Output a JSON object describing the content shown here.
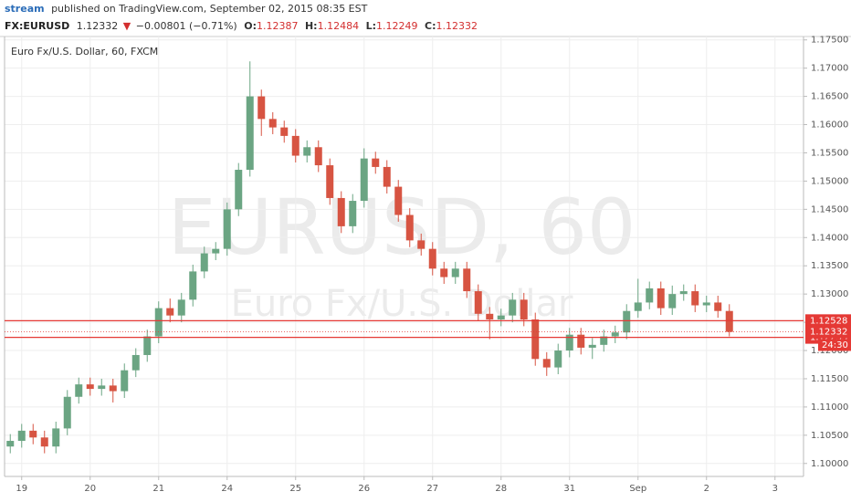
{
  "header": {
    "author": "stream",
    "published": "published on TradingView.com, September 02, 2015 08:35 EST"
  },
  "legend": {
    "symbol": "FX:EURUSD",
    "last": "1.12332",
    "arrow": "▼",
    "change": "−0.00801 (−0.71%)",
    "o_label": "O:",
    "o": "1.12387",
    "h_label": "H:",
    "h": "1.12484",
    "l_label": "L:",
    "l": "1.12249",
    "c_label": "C:",
    "c": "1.12332"
  },
  "chart_data": {
    "type": "candlestick",
    "title": "Euro Fx/U.S. Dollar, 60, FXCM",
    "watermark": "EURUSD, 60",
    "watermark_sub": "Euro Fx/U.S. Dollar",
    "up_color": "#6ba583",
    "down_color": "#d75442",
    "line_color": "#e53935",
    "categories": [
      null,
      "19",
      null,
      null,
      null,
      null,
      null,
      "20",
      null,
      null,
      null,
      null,
      null,
      "21",
      null,
      null,
      null,
      null,
      null,
      "24",
      null,
      null,
      null,
      null,
      null,
      "25",
      null,
      null,
      null,
      null,
      null,
      "26",
      null,
      null,
      null,
      null,
      null,
      "27",
      null,
      null,
      null,
      null,
      null,
      "28",
      null,
      null,
      null,
      null,
      null,
      "31",
      null,
      null,
      null,
      null,
      null,
      "Sep",
      null,
      null,
      null,
      null,
      null,
      "2",
      null,
      null,
      null,
      null,
      null,
      "3"
    ],
    "open": [
      1.103,
      1.104,
      1.1058,
      1.1046,
      1.103,
      1.1062,
      1.1118,
      1.114,
      1.1132,
      1.1138,
      1.1128,
      1.1165,
      1.1192,
      1.1225,
      1.1275,
      1.1262,
      1.129,
      1.134,
      1.1372,
      1.138,
      1.145,
      1.152,
      1.165,
      1.161,
      1.1595,
      1.158,
      1.1545,
      1.156,
      1.1528,
      1.147,
      1.142,
      1.1465,
      1.154,
      1.1525,
      1.149,
      1.144,
      1.1395,
      1.138,
      1.1345,
      1.133,
      1.1345,
      1.1305,
      1.1265,
      1.1255,
      1.1262,
      1.129,
      1.1255,
      1.1185,
      1.117,
      1.12,
      1.1228,
      1.1205,
      1.121,
      1.1225,
      1.1232,
      1.127,
      1.1285,
      1.131,
      1.1275,
      1.13,
      1.1305,
      1.128,
      1.1285,
      1.127,
      null,
      null,
      null,
      null
    ],
    "high": [
      1.1052,
      1.107,
      1.107,
      1.1058,
      1.1074,
      1.113,
      1.1152,
      1.1152,
      1.115,
      1.115,
      1.1177,
      1.1204,
      1.1237,
      1.1287,
      1.1292,
      1.1302,
      1.1352,
      1.1384,
      1.1392,
      1.1462,
      1.1532,
      1.1712,
      1.1662,
      1.1622,
      1.1607,
      1.1592,
      1.1572,
      1.1572,
      1.154,
      1.1482,
      1.1477,
      1.1558,
      1.1552,
      1.1537,
      1.1502,
      1.1452,
      1.1407,
      1.1392,
      1.1357,
      1.1357,
      1.1357,
      1.1317,
      1.1277,
      1.1274,
      1.1302,
      1.1302,
      1.1267,
      1.1197,
      1.1212,
      1.124,
      1.124,
      1.1222,
      1.1237,
      1.1244,
      1.1282,
      1.1327,
      1.1322,
      1.1322,
      1.1315,
      1.1317,
      1.1317,
      1.1297,
      1.1297,
      1.1282,
      null,
      null,
      null,
      null
    ],
    "low": [
      1.1018,
      1.1028,
      1.1034,
      1.1018,
      1.1018,
      1.105,
      1.1106,
      1.112,
      1.112,
      1.1108,
      1.1116,
      1.1153,
      1.118,
      1.1213,
      1.125,
      1.125,
      1.1278,
      1.1328,
      1.136,
      1.1368,
      1.1438,
      1.1508,
      1.158,
      1.1583,
      1.1568,
      1.1533,
      1.1533,
      1.1516,
      1.1458,
      1.1408,
      1.1408,
      1.1453,
      1.1513,
      1.1478,
      1.1428,
      1.1383,
      1.1368,
      1.1333,
      1.1318,
      1.1318,
      1.1293,
      1.1253,
      1.122,
      1.1243,
      1.125,
      1.1243,
      1.1173,
      1.1155,
      1.1158,
      1.1188,
      1.1193,
      1.1185,
      1.1198,
      1.1213,
      1.122,
      1.1258,
      1.1273,
      1.1263,
      1.1263,
      1.1288,
      1.1268,
      1.1268,
      1.1258,
      1.1225,
      null,
      null,
      null,
      null
    ],
    "close": [
      1.104,
      1.1058,
      1.1046,
      1.103,
      1.1062,
      1.1118,
      1.114,
      1.1132,
      1.1138,
      1.1128,
      1.1165,
      1.1192,
      1.1225,
      1.1275,
      1.1262,
      1.129,
      1.134,
      1.1372,
      1.138,
      1.145,
      1.152,
      1.165,
      1.161,
      1.1595,
      1.158,
      1.1545,
      1.156,
      1.1528,
      1.147,
      1.142,
      1.1465,
      1.154,
      1.1525,
      1.149,
      1.144,
      1.1395,
      1.138,
      1.1345,
      1.133,
      1.1345,
      1.1305,
      1.1265,
      1.1255,
      1.1262,
      1.129,
      1.1255,
      1.1185,
      1.117,
      1.12,
      1.1228,
      1.1205,
      1.121,
      1.1225,
      1.1232,
      1.127,
      1.1285,
      1.131,
      1.1275,
      1.13,
      1.1305,
      1.128,
      1.1285,
      1.127,
      1.1233,
      null,
      null,
      null,
      null
    ],
    "hlines": [
      1.12528,
      1.12233
    ],
    "last_price": 1.12332,
    "countdown": "24:30",
    "ylim": [
      1.0977,
      1.1756
    ],
    "yticks": [
      {
        "value": 1.1,
        "label": "1.10000"
      },
      {
        "value": 1.105,
        "label": "1.10500"
      },
      {
        "value": 1.11,
        "label": "1.11000"
      },
      {
        "value": 1.115,
        "label": "1.11500"
      },
      {
        "value": 1.12,
        "label": "1.12000"
      },
      {
        "value": 1.125,
        "label": "1.12500"
      },
      {
        "value": 1.13,
        "label": "1.13000"
      },
      {
        "value": 1.135,
        "label": "1.13500"
      },
      {
        "value": 1.14,
        "label": "1.14000"
      },
      {
        "value": 1.145,
        "label": "1.14500"
      },
      {
        "value": 1.15,
        "label": "1.15000"
      },
      {
        "value": 1.155,
        "label": "1.15500"
      },
      {
        "value": 1.16,
        "label": "1.16000"
      },
      {
        "value": 1.165,
        "label": "1.16500"
      },
      {
        "value": 1.17,
        "label": "1.17000"
      },
      {
        "value": 1.175,
        "label": "1.17500"
      }
    ],
    "grid": true
  }
}
